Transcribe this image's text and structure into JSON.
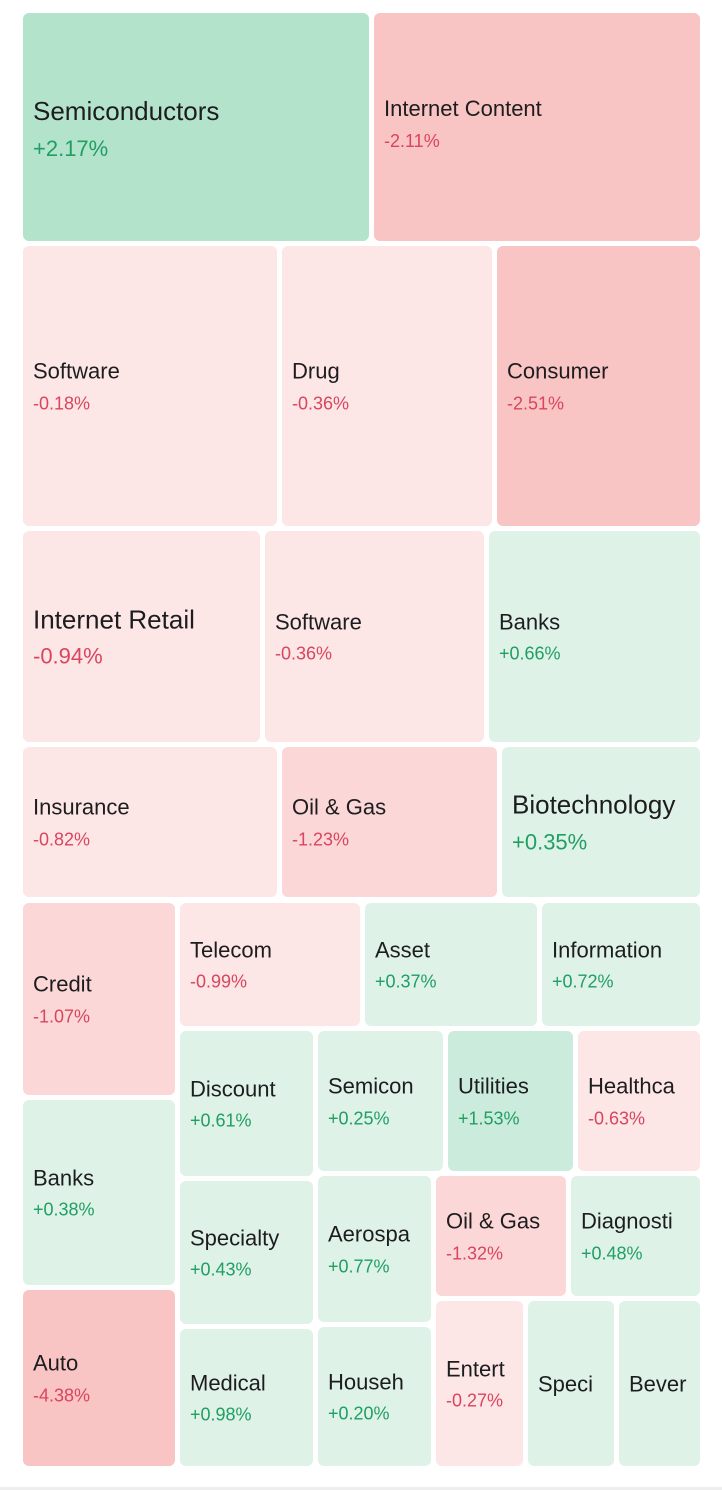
{
  "colors": {
    "strong_positive": "#b4e3cc",
    "mid_positive": "#cbecdc",
    "light_positive": "#dff2e8",
    "strong_negative": "#f9c4c4",
    "mid_negative": "#fbd7d7",
    "light_negative": "#fde6e6",
    "positive_text": "#1f9f62",
    "negative_text": "#d9455e"
  },
  "tiles": [
    {
      "label": "Semiconductors",
      "change": "+2.17%"
    },
    {
      "label": "Internet Content",
      "change": "-2.11%"
    },
    {
      "label": "Software",
      "change": "-0.18%"
    },
    {
      "label": "Drug",
      "change": "-0.36%"
    },
    {
      "label": "Consumer",
      "change": "-2.51%"
    },
    {
      "label": "Internet Retail",
      "change": "-0.94%"
    },
    {
      "label": "Software",
      "change": "-0.36%"
    },
    {
      "label": "Banks",
      "change": "+0.66%"
    },
    {
      "label": "Insurance",
      "change": "-0.82%"
    },
    {
      "label": "Oil & Gas",
      "change": "-1.23%"
    },
    {
      "label": "Biotechnology",
      "change": "+0.35%"
    },
    {
      "label": "Credit",
      "change": "-1.07%"
    },
    {
      "label": "Telecom",
      "change": "-0.99%"
    },
    {
      "label": "Asset",
      "change": "+0.37%"
    },
    {
      "label": "Information",
      "change": "+0.72%"
    },
    {
      "label": "Banks",
      "change": "+0.38%"
    },
    {
      "label": "Discount",
      "change": "+0.61%"
    },
    {
      "label": "Semicon",
      "change": "+0.25%"
    },
    {
      "label": "Utilities",
      "change": "+1.53%"
    },
    {
      "label": "Healthca",
      "change": "-0.63%"
    },
    {
      "label": "Specialty",
      "change": "+0.43%"
    },
    {
      "label": "Aerospa",
      "change": "+0.77%"
    },
    {
      "label": "Oil & Gas",
      "change": "-1.32%"
    },
    {
      "label": "Diagnosti",
      "change": "+0.48%"
    },
    {
      "label": "Auto",
      "change": "-4.38%"
    },
    {
      "label": "Medical",
      "change": "+0.98%"
    },
    {
      "label": "Househ",
      "change": "+0.20%"
    },
    {
      "label": "Entert",
      "change": "-0.27%"
    },
    {
      "label": "Speci",
      "change": ""
    },
    {
      "label": "Bever",
      "change": ""
    }
  ]
}
